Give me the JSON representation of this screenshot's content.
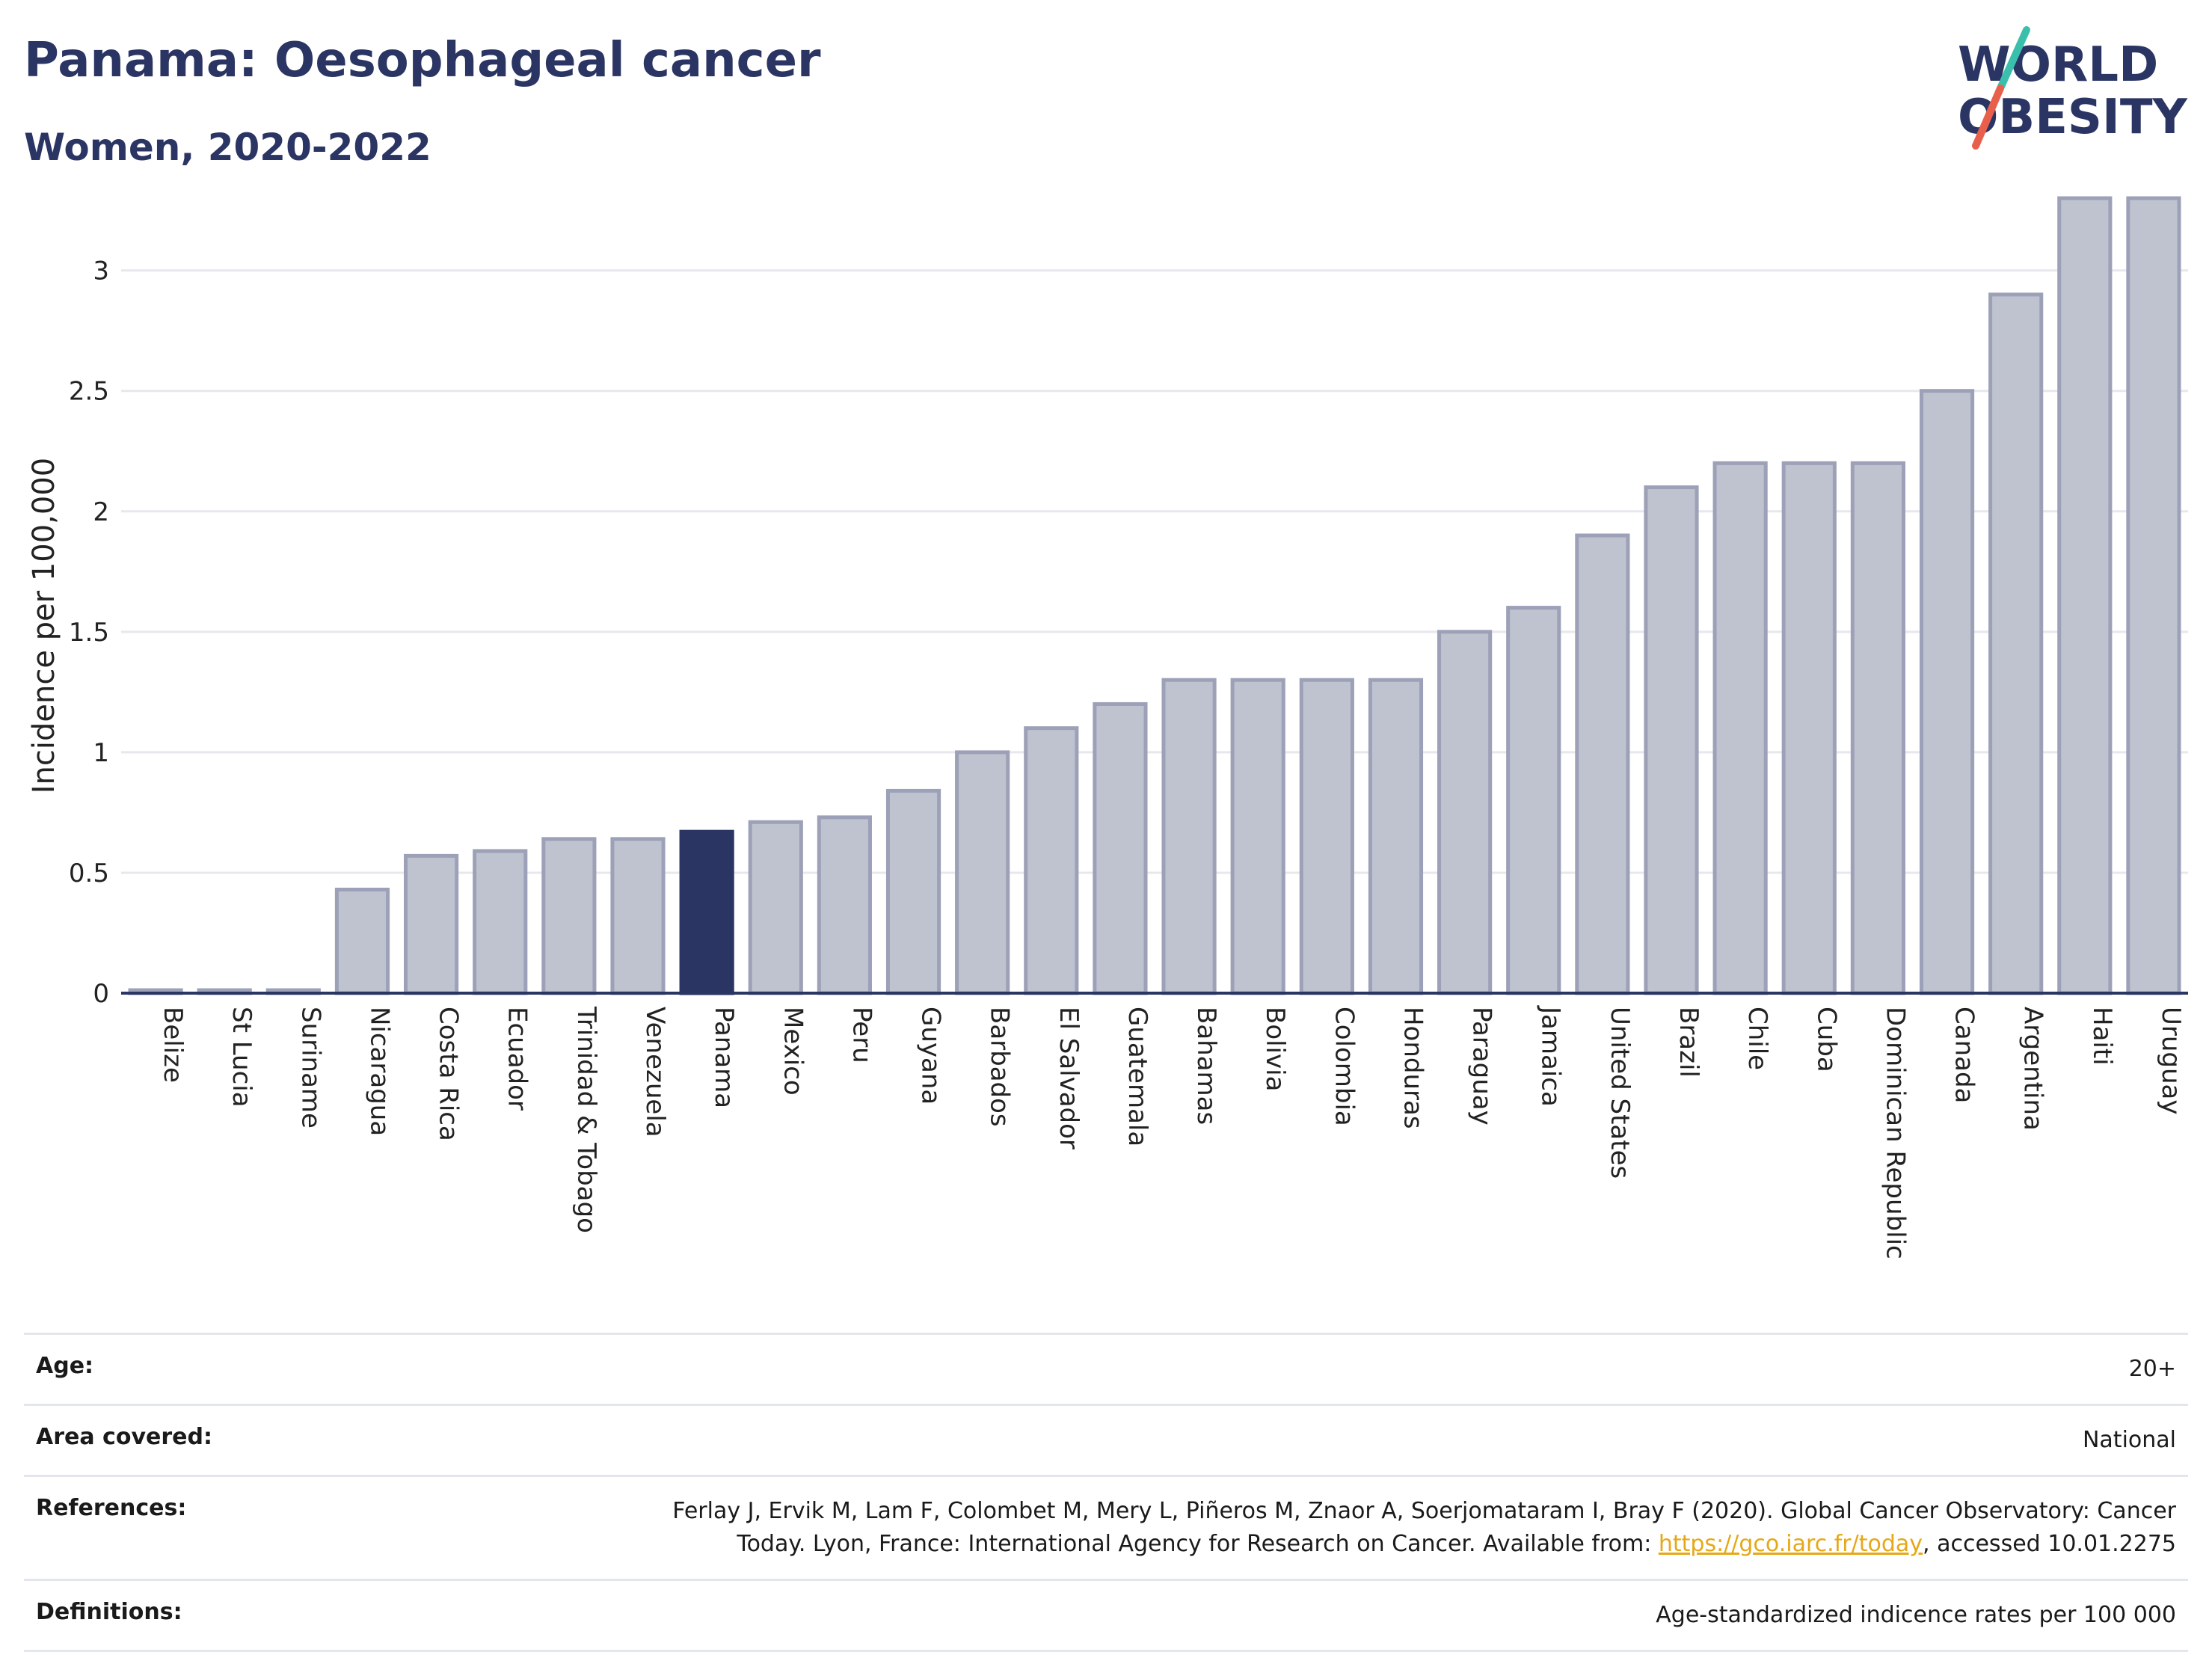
{
  "header": {
    "title": "Panama: Oesophageal cancer",
    "subtitle": "Women, 2020-2022"
  },
  "logo": {
    "line1": "WORLD",
    "line2": "OBESITY",
    "colors": {
      "text": "#2b3564",
      "slash_top": "#3bbfad",
      "slash_bottom": "#e8604c"
    }
  },
  "chart_data": {
    "type": "bar",
    "title": "Panama: Oesophageal cancer",
    "subtitle": "Women, 2020-2022",
    "xlabel": "",
    "ylabel": "Incidence per 100,000",
    "ylim": [
      0,
      3.3
    ],
    "yticks": [
      0,
      0.5,
      1,
      1.5,
      2,
      2.5,
      3
    ],
    "ytick_labels": [
      "0",
      "0.5",
      "1",
      "1.5",
      "2",
      "2.5",
      "3"
    ],
    "categories": [
      "Belize",
      "St Lucia",
      "Suriname",
      "Nicaragua",
      "Costa Rica",
      "Ecuador",
      "Trinidad & Tobago",
      "Venezuela",
      "Panama",
      "Mexico",
      "Peru",
      "Guyana",
      "Barbados",
      "El Salvador",
      "Guatemala",
      "Bahamas",
      "Bolivia",
      "Colombia",
      "Honduras",
      "Paraguay",
      "Jamaica",
      "United States",
      "Brazil",
      "Chile",
      "Cuba",
      "Dominican Republic",
      "Canada",
      "Argentina",
      "Haiti",
      "Uruguay"
    ],
    "values": [
      0.0,
      0.0,
      0.0,
      0.43,
      0.57,
      0.59,
      0.64,
      0.64,
      0.67,
      0.71,
      0.73,
      0.84,
      1.0,
      1.1,
      1.2,
      1.3,
      1.3,
      1.3,
      1.3,
      1.5,
      1.6,
      1.9,
      2.1,
      2.2,
      2.2,
      2.2,
      2.5,
      2.9,
      3.3,
      3.3
    ],
    "highlight": "Panama",
    "grid": true,
    "colors": {
      "bar": "#bfc2cf",
      "bar_edge": "#9da1b8",
      "highlight": "#2b3564",
      "grid": "#e6e8ee",
      "axis": "#2b3564"
    }
  },
  "info": {
    "age_label": "Age:",
    "age_value": "20+",
    "area_label": "Area covered:",
    "area_value": "National",
    "refs_label": "References:",
    "refs_line1": "Ferlay J, Ervik M, Lam F, Colombet M, Mery L, Piñeros M, Znaor A, Soerjomataram I, Bray F (2020). Global Cancer Observatory: Cancer",
    "refs_line2_pre": "Today. Lyon, France: International Agency for Research on Cancer. Available from: ",
    "refs_link": "https://gco.iarc.fr/today",
    "refs_line2_post": ", accessed 10.01.2275",
    "defs_label": "Definitions:",
    "defs_value": "Age-standardized indicence rates per 100 000"
  }
}
